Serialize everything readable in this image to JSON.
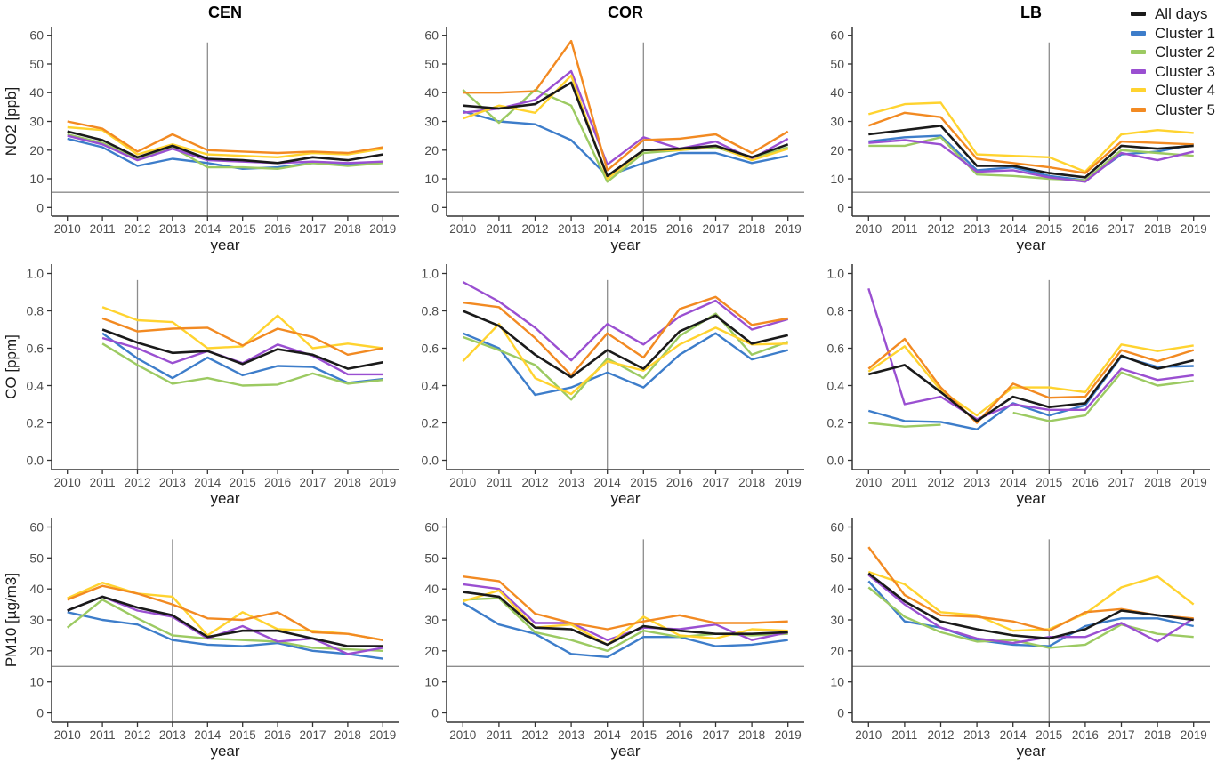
{
  "style": {
    "background": "#ffffff",
    "axis_color": "#333333",
    "tick_label_color": "#4d4d4d",
    "axis_title_color": "#1a1a1a",
    "ref_line_color": "#8c8c8c"
  },
  "legend": {
    "items": [
      {
        "key": "all_days",
        "label": "All days",
        "color": "#1a1a1a"
      },
      {
        "key": "cluster1",
        "label": "Cluster 1",
        "color": "#3d7dca"
      },
      {
        "key": "cluster2",
        "label": "Cluster 2",
        "color": "#9cca62"
      },
      {
        "key": "cluster3",
        "label": "Cluster 3",
        "color": "#9a4fd1"
      },
      {
        "key": "cluster4",
        "label": "Cluster 4",
        "color": "#ffd32f"
      },
      {
        "key": "cluster5",
        "label": "Cluster 5",
        "color": "#f28a22"
      }
    ]
  },
  "draw_order": [
    "cluster1",
    "cluster2",
    "cluster3",
    "cluster4",
    "cluster5",
    "all_days"
  ],
  "chart_data": [
    {
      "id": "cen-no2",
      "type": "line",
      "station": "CEN",
      "pollutant": "NO2",
      "title": "CEN",
      "ylabel": "NO2 [ppb]",
      "xlabel": "year",
      "x": [
        2010,
        2011,
        2012,
        2013,
        2014,
        2015,
        2016,
        2017,
        2018,
        2019
      ],
      "ylim": [
        0,
        60
      ],
      "yticks": [
        0,
        10,
        20,
        30,
        40,
        50,
        60
      ],
      "ytick_labels": [
        "0",
        "10",
        "20",
        "30",
        "40",
        "50",
        "60"
      ],
      "hline_y": 5.3,
      "vline_x": 2014,
      "vline_top": 57.5,
      "series": {
        "all_days": [
          26.5,
          23.5,
          17.5,
          21.5,
          17,
          16.5,
          15.5,
          17.5,
          16.5,
          18.5
        ],
        "cluster1": [
          24,
          21,
          14.5,
          17,
          15.5,
          13.5,
          14,
          15.5,
          15,
          15.5
        ],
        "cluster2": [
          25.5,
          22.5,
          17,
          21,
          14,
          14,
          13.5,
          15.5,
          14.5,
          15.5
        ],
        "cluster3": [
          25,
          22,
          16.5,
          20.5,
          16.5,
          16,
          15.5,
          16,
          15.5,
          16
        ],
        "cluster4": [
          28,
          27,
          18.5,
          22,
          18.5,
          18,
          17.5,
          19,
          18.5,
          20.5
        ],
        "cluster5": [
          30,
          27.5,
          19.5,
          25.5,
          20,
          19.5,
          19,
          19.5,
          19,
          21
        ]
      }
    },
    {
      "id": "cor-no2",
      "type": "line",
      "station": "COR",
      "pollutant": "NO2",
      "title": "COR",
      "ylabel": "",
      "xlabel": "year",
      "x": [
        2010,
        2011,
        2012,
        2013,
        2014,
        2015,
        2016,
        2017,
        2018,
        2019
      ],
      "ylim": [
        0,
        60
      ],
      "yticks": [
        0,
        10,
        20,
        30,
        40,
        50,
        60
      ],
      "ytick_labels": [
        "0",
        "10",
        "20",
        "30",
        "40",
        "50",
        "60"
      ],
      "hline_y": 5.3,
      "vline_x": 2015,
      "vline_top": 57.5,
      "series": {
        "all_days": [
          35.5,
          34.5,
          36,
          43.5,
          11,
          20,
          20.5,
          21.5,
          17.5,
          22
        ],
        "cluster1": [
          33.5,
          30,
          29,
          23.5,
          11,
          15.5,
          19,
          19,
          15.5,
          18
        ],
        "cluster2": [
          41,
          29.5,
          41,
          35.5,
          9,
          19,
          20,
          21,
          17,
          21
        ],
        "cluster3": [
          33,
          34.5,
          37.5,
          47.5,
          15,
          24.5,
          20.5,
          23,
          17,
          24
        ],
        "cluster4": [
          31,
          35.5,
          33,
          46,
          10,
          20,
          20,
          21.5,
          16.5,
          20.5
        ],
        "cluster5": [
          40,
          40,
          40.5,
          58,
          13,
          23.5,
          24,
          25.5,
          19,
          26.5
        ]
      }
    },
    {
      "id": "lb-no2",
      "type": "line",
      "station": "LB",
      "pollutant": "NO2",
      "title": "LB",
      "ylabel": "",
      "xlabel": "year",
      "x": [
        2010,
        2011,
        2012,
        2013,
        2014,
        2015,
        2016,
        2017,
        2018,
        2019
      ],
      "ylim": [
        0,
        60
      ],
      "yticks": [
        0,
        10,
        20,
        30,
        40,
        50,
        60
      ],
      "ytick_labels": [
        "0",
        "10",
        "20",
        "30",
        "40",
        "50",
        "60"
      ],
      "hline_y": 5.3,
      "vline_x": 2015,
      "vline_top": 57.5,
      "series": {
        "all_days": [
          25.5,
          27,
          28.5,
          14.5,
          14.5,
          12,
          10.5,
          21.5,
          20.5,
          21.5
        ],
        "cluster1": [
          23,
          24.5,
          25,
          13,
          14,
          11,
          9.5,
          18.5,
          19.5,
          22
        ],
        "cluster2": [
          21.5,
          21.5,
          24.5,
          11.5,
          11,
          10,
          9.5,
          20,
          19,
          18
        ],
        "cluster3": [
          22.5,
          23.5,
          22,
          12.5,
          13,
          10.5,
          9,
          19,
          16.5,
          19.5
        ],
        "cluster4": [
          32.5,
          36,
          36.5,
          18.5,
          18,
          17.5,
          12.5,
          25.5,
          27,
          26
        ],
        "cluster5": [
          28.5,
          33,
          31.5,
          17,
          15.5,
          14,
          12,
          23,
          22.5,
          22
        ]
      }
    },
    {
      "id": "cen-co",
      "type": "line",
      "station": "CEN",
      "pollutant": "CO",
      "title": "",
      "ylabel": "CO [ppm]",
      "xlabel": "year",
      "x": [
        2010,
        2011,
        2012,
        2013,
        2014,
        2015,
        2016,
        2017,
        2018,
        2019
      ],
      "ylim": [
        0,
        1.0
      ],
      "yticks": [
        0,
        0.2,
        0.4,
        0.6,
        0.8,
        1.0
      ],
      "ytick_labels": [
        "0.0",
        "0.2",
        "0.4",
        "0.6",
        "0.8",
        "1.0"
      ],
      "hline_y": null,
      "vline_x": 2012,
      "vline_top": 0.965,
      "series": {
        "all_days": [
          null,
          0.7,
          0.63,
          0.575,
          0.585,
          0.515,
          0.595,
          0.565,
          0.49,
          0.525
        ],
        "cluster1": [
          null,
          0.68,
          0.545,
          0.44,
          0.55,
          0.455,
          0.505,
          0.5,
          0.415,
          0.435
        ],
        "cluster2": [
          null,
          0.625,
          0.51,
          0.41,
          0.44,
          0.4,
          0.405,
          0.465,
          0.41,
          0.43
        ],
        "cluster3": [
          null,
          0.655,
          0.6,
          0.52,
          0.585,
          0.52,
          0.62,
          0.56,
          0.46,
          0.46
        ],
        "cluster4": [
          null,
          0.82,
          0.75,
          0.74,
          0.6,
          0.61,
          0.775,
          0.6,
          0.625,
          0.6
        ],
        "cluster5": [
          null,
          0.76,
          0.69,
          0.705,
          0.71,
          0.615,
          0.705,
          0.66,
          0.565,
          0.6
        ]
      }
    },
    {
      "id": "cor-co",
      "type": "line",
      "station": "COR",
      "pollutant": "CO",
      "title": "",
      "ylabel": "",
      "xlabel": "year",
      "x": [
        2010,
        2011,
        2012,
        2013,
        2014,
        2015,
        2016,
        2017,
        2018,
        2019
      ],
      "ylim": [
        0,
        1.0
      ],
      "yticks": [
        0,
        0.2,
        0.4,
        0.6,
        0.8,
        1.0
      ],
      "ytick_labels": [
        "0.0",
        "0.2",
        "0.4",
        "0.6",
        "0.8",
        "1.0"
      ],
      "hline_y": null,
      "vline_x": 2014,
      "vline_top": 0.965,
      "series": {
        "all_days": [
          0.8,
          0.72,
          0.565,
          0.445,
          0.59,
          0.49,
          0.69,
          0.775,
          0.625,
          0.67
        ],
        "cluster1": [
          0.68,
          0.6,
          0.35,
          0.39,
          0.47,
          0.39,
          0.565,
          0.68,
          0.54,
          0.59
        ],
        "cluster2": [
          0.66,
          0.59,
          0.51,
          0.325,
          0.545,
          0.44,
          0.665,
          0.785,
          0.565,
          0.635
        ],
        "cluster3": [
          0.955,
          0.85,
          0.71,
          0.535,
          0.73,
          0.62,
          0.77,
          0.855,
          0.7,
          0.755
        ],
        "cluster4": [
          0.53,
          0.73,
          0.44,
          0.355,
          0.53,
          0.48,
          0.62,
          0.71,
          0.62,
          0.625
        ],
        "cluster5": [
          0.845,
          0.82,
          0.655,
          0.455,
          0.68,
          0.55,
          0.81,
          0.875,
          0.725,
          0.76
        ]
      }
    },
    {
      "id": "lb-co",
      "type": "line",
      "station": "LB",
      "pollutant": "CO",
      "title": "",
      "ylabel": "",
      "xlabel": "year",
      "x": [
        2010,
        2011,
        2012,
        2013,
        2014,
        2015,
        2016,
        2017,
        2018,
        2019
      ],
      "ylim": [
        0,
        1.0
      ],
      "yticks": [
        0,
        0.2,
        0.4,
        0.6,
        0.8,
        1.0
      ],
      "ytick_labels": [
        "0.0",
        "0.2",
        "0.4",
        "0.6",
        "0.8",
        "1.0"
      ],
      "hline_y": null,
      "vline_x": 2015,
      "vline_top": 0.965,
      "series": {
        "all_days": [
          0.46,
          0.51,
          0.365,
          0.21,
          0.34,
          0.285,
          0.305,
          0.56,
          0.49,
          0.535
        ],
        "cluster1": [
          0.265,
          0.21,
          0.205,
          0.165,
          0.305,
          0.24,
          0.295,
          0.555,
          0.5,
          0.505
        ],
        "cluster2": [
          0.2,
          0.18,
          0.19,
          null,
          0.255,
          0.21,
          0.24,
          0.47,
          0.4,
          0.425
        ],
        "cluster3": [
          0.92,
          0.3,
          0.34,
          0.22,
          0.3,
          0.27,
          0.27,
          0.49,
          0.43,
          0.455
        ],
        "cluster4": [
          0.475,
          0.61,
          0.375,
          0.24,
          0.39,
          0.39,
          0.365,
          0.62,
          0.585,
          0.615
        ],
        "cluster5": [
          0.49,
          0.65,
          0.39,
          0.2,
          0.41,
          0.335,
          0.34,
          0.59,
          0.53,
          0.59
        ]
      }
    },
    {
      "id": "cen-pm10",
      "type": "line",
      "station": "CEN",
      "pollutant": "PM10",
      "title": "",
      "ylabel": "PM10 [µg/m3]",
      "xlabel": "year",
      "x": [
        2010,
        2011,
        2012,
        2013,
        2014,
        2015,
        2016,
        2017,
        2018,
        2019
      ],
      "ylim": [
        0,
        60
      ],
      "yticks": [
        0,
        10,
        20,
        30,
        40,
        50,
        60
      ],
      "ytick_labels": [
        "0",
        "10",
        "20",
        "30",
        "40",
        "50",
        "60"
      ],
      "hline_y": 15,
      "vline_x": 2013,
      "vline_top": 56,
      "series": {
        "all_days": [
          33,
          37.5,
          34,
          31.5,
          24.5,
          26.5,
          26.5,
          24,
          21.5,
          21.5
        ],
        "cluster1": [
          32.5,
          30,
          28.5,
          23.5,
          22,
          21.5,
          22.5,
          20,
          19,
          17.5
        ],
        "cluster2": [
          27.5,
          36.5,
          30.5,
          25,
          24,
          23.5,
          23,
          21,
          20.5,
          20
        ],
        "cluster3": [
          33,
          37.5,
          33,
          31,
          24,
          28,
          23,
          24,
          19,
          21
        ],
        "cluster4": [
          37,
          42,
          38.5,
          37.5,
          25,
          32.5,
          27,
          26.5,
          25.5,
          23.5
        ],
        "cluster5": [
          36.5,
          41,
          38.5,
          35,
          30.5,
          30,
          32.5,
          26,
          25.5,
          23.5
        ]
      }
    },
    {
      "id": "cor-pm10",
      "type": "line",
      "station": "COR",
      "pollutant": "PM10",
      "title": "",
      "ylabel": "",
      "xlabel": "year",
      "x": [
        2010,
        2011,
        2012,
        2013,
        2014,
        2015,
        2016,
        2017,
        2018,
        2019
      ],
      "ylim": [
        0,
        60
      ],
      "yticks": [
        0,
        10,
        20,
        30,
        40,
        50,
        60
      ],
      "ytick_labels": [
        "0",
        "10",
        "20",
        "30",
        "40",
        "50",
        "60"
      ],
      "hline_y": 15,
      "vline_x": 2015,
      "vline_top": 56,
      "series": {
        "all_days": [
          39,
          37.5,
          27.5,
          27,
          22,
          28,
          26.5,
          25.5,
          25.5,
          26
        ],
        "cluster1": [
          35.5,
          28.5,
          25.5,
          19,
          18,
          24.5,
          24.5,
          21.5,
          22,
          23.5
        ],
        "cluster2": [
          36.5,
          37,
          26,
          23.5,
          20,
          26.5,
          24.5,
          25.5,
          25,
          25.5
        ],
        "cluster3": [
          41.5,
          40,
          29,
          29,
          23.5,
          27.5,
          27,
          28.5,
          23.5,
          26
        ],
        "cluster4": [
          36,
          39.5,
          27.5,
          28.5,
          22,
          31,
          25,
          24,
          27,
          26.5
        ],
        "cluster5": [
          44,
          42.5,
          32,
          29,
          27,
          29.5,
          31.5,
          29,
          29,
          29.5
        ]
      }
    },
    {
      "id": "lb-pm10",
      "type": "line",
      "station": "LB",
      "pollutant": "PM10",
      "title": "",
      "ylabel": "",
      "xlabel": "year",
      "x": [
        2010,
        2011,
        2012,
        2013,
        2014,
        2015,
        2016,
        2017,
        2018,
        2019
      ],
      "ylim": [
        0,
        60
      ],
      "yticks": [
        0,
        10,
        20,
        30,
        40,
        50,
        60
      ],
      "ytick_labels": [
        "0",
        "10",
        "20",
        "30",
        "40",
        "50",
        "60"
      ],
      "hline_y": 15,
      "vline_x": 2015,
      "vline_top": 56,
      "series": {
        "all_days": [
          45,
          36,
          29.5,
          27,
          25,
          24,
          27,
          33,
          31.5,
          30
        ],
        "cluster1": [
          42.5,
          29.5,
          27.5,
          23.5,
          22,
          21.5,
          28,
          30.5,
          30.5,
          28
        ],
        "cluster2": [
          40.5,
          31,
          26,
          23,
          23.5,
          21,
          22,
          28.5,
          25.5,
          24.5
        ],
        "cluster3": [
          44.5,
          35,
          27.5,
          24,
          22.5,
          24.5,
          24.5,
          29,
          23,
          30.5
        ],
        "cluster4": [
          45.5,
          41.5,
          32.5,
          31.5,
          26.5,
          27,
          32,
          40.5,
          44,
          35
        ],
        "cluster5": [
          53.5,
          38,
          31.5,
          31,
          29.5,
          26.5,
          32.5,
          33.5,
          31.5,
          30.5
        ]
      }
    }
  ]
}
